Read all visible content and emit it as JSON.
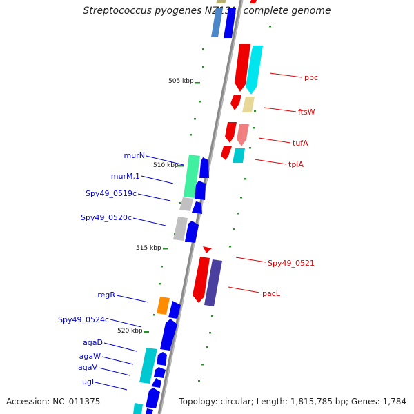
{
  "title": "Streptococcus pyogenes NZ131, complete genome",
  "footer": {
    "accession": "Accession: NC_011375",
    "summary": "Topology: circular; Length: 1,815,785 bp; Genes: 1,784"
  },
  "colors": {
    "backbone": "#8a8a8a",
    "tick": "#2e8b2e",
    "red_label": "#dd0000",
    "blue_label": "#0000cc"
  },
  "scale_labels": [
    "505 kbp",
    "510 kbp",
    "515 kbp",
    "520 kbp"
  ],
  "right_genes": [
    "ppc",
    "ftsW",
    "tufA",
    "tpiA",
    "Spy49_0521",
    "pacL"
  ],
  "left_genes": [
    "murN",
    "murM.1",
    "Spy49_0519c",
    "Spy49_0520c",
    "regR",
    "Spy49_0524c",
    "agaD",
    "agaW",
    "agaV",
    "ugl"
  ]
}
